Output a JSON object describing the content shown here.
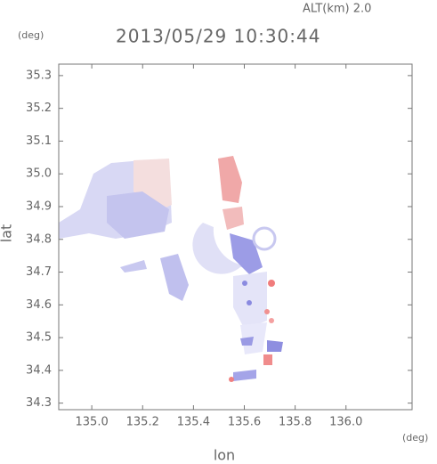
{
  "header": {
    "altitude": "ALT(km) 2.0",
    "time": "2013/05/29 10:30:44"
  },
  "chart_data": {
    "type": "field",
    "x_unit": "(deg)",
    "y_unit": "(deg)",
    "x_label": "lon",
    "y_label": "lat",
    "xlim": [
      134.87,
      136.26
    ],
    "ylim": [
      34.28,
      35.335
    ],
    "xticks": [
      {
        "value": 135.0,
        "label": "135.0"
      },
      135.2,
      135.4,
      135.6,
      135.8,
      {
        "value": 136.0,
        "label": "136.0"
      }
    ],
    "yticks": [
      35.3,
      35.2,
      35.1,
      {
        "value": 35.0,
        "label": "35.0"
      },
      34.9,
      34.8,
      34.7,
      34.6,
      34.5,
      34.4,
      34.3
    ]
  }
}
